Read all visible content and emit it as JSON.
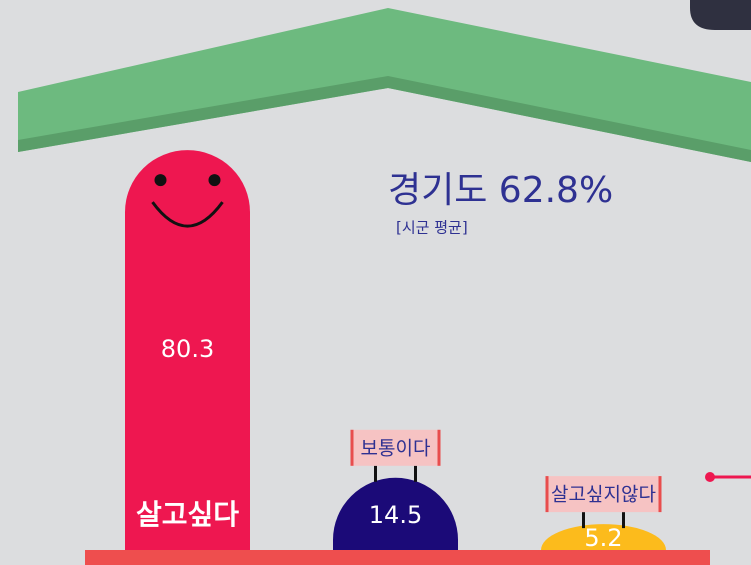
{
  "chart_data": {
    "type": "bar",
    "annotation": "경기도 62.8%",
    "subtitle": "[시군 평균]",
    "categories": [
      "살고싶다",
      "보통이다",
      "살고싶지않다"
    ],
    "values": [
      80.3,
      14.5,
      5.2
    ],
    "colors": [
      "#ee1750",
      "#1b0a78",
      "#fcbb1c"
    ]
  }
}
